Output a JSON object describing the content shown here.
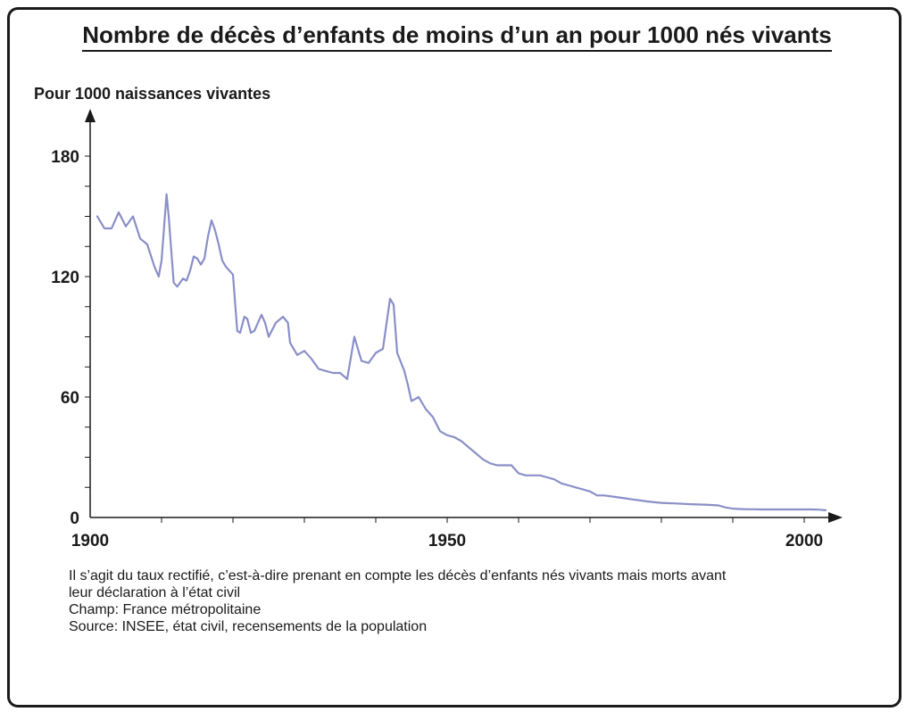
{
  "chart_data": {
    "type": "line",
    "title": "Nombre de décès d’enfants de moins d’un an pour 1000 nés vivants",
    "ylabel": "Pour 1000 naissances vivantes",
    "xlabel": "",
    "xlim": [
      1900,
      2005
    ],
    "ylim": [
      0,
      190
    ],
    "x_ticks": [
      1900,
      1950,
      2000
    ],
    "y_ticks": [
      0,
      60,
      120,
      180
    ],
    "grid": false,
    "series": [
      {
        "color": "#8a8fc8",
        "points": [
          [
            1901,
            150
          ],
          [
            1902,
            144
          ],
          [
            1903,
            144
          ],
          [
            1904,
            152
          ],
          [
            1905,
            145
          ],
          [
            1906,
            150
          ],
          [
            1907,
            139
          ],
          [
            1908,
            136
          ],
          [
            1909,
            125
          ],
          [
            1909.6,
            120
          ],
          [
            1910,
            128
          ],
          [
            1910.7,
            161
          ],
          [
            1911,
            150
          ],
          [
            1911.7,
            117
          ],
          [
            1912.2,
            115
          ],
          [
            1913,
            119
          ],
          [
            1913.5,
            118
          ],
          [
            1914,
            123
          ],
          [
            1914.5,
            130
          ],
          [
            1915,
            129
          ],
          [
            1915.5,
            126
          ],
          [
            1916,
            129
          ],
          [
            1916.5,
            140
          ],
          [
            1917,
            148
          ],
          [
            1917.5,
            143
          ],
          [
            1918,
            136
          ],
          [
            1918.5,
            128
          ],
          [
            1919,
            125
          ],
          [
            1920,
            121
          ],
          [
            1920.6,
            93
          ],
          [
            1921,
            92
          ],
          [
            1921.6,
            100
          ],
          [
            1922,
            99
          ],
          [
            1922.5,
            92
          ],
          [
            1923,
            93
          ],
          [
            1924,
            101
          ],
          [
            1924.5,
            97
          ],
          [
            1925,
            90
          ],
          [
            1926,
            97
          ],
          [
            1927,
            100
          ],
          [
            1927.7,
            97
          ],
          [
            1928,
            87
          ],
          [
            1929,
            81
          ],
          [
            1930,
            83
          ],
          [
            1931,
            79
          ],
          [
            1932,
            74
          ],
          [
            1933,
            73
          ],
          [
            1934,
            72
          ],
          [
            1935,
            72
          ],
          [
            1936,
            69
          ],
          [
            1937,
            90
          ],
          [
            1938,
            78
          ],
          [
            1939,
            77
          ],
          [
            1940,
            82
          ],
          [
            1941,
            84
          ],
          [
            1942,
            109
          ],
          [
            1942.5,
            106
          ],
          [
            1943,
            82
          ],
          [
            1944,
            73
          ],
          [
            1944.5,
            66
          ],
          [
            1945,
            58
          ],
          [
            1945.5,
            59
          ],
          [
            1946,
            60
          ],
          [
            1947,
            54
          ],
          [
            1948,
            50
          ],
          [
            1949,
            43
          ],
          [
            1950,
            41
          ],
          [
            1951,
            40
          ],
          [
            1952,
            38
          ],
          [
            1953,
            35
          ],
          [
            1954,
            32
          ],
          [
            1955,
            29
          ],
          [
            1956,
            27
          ],
          [
            1957,
            26
          ],
          [
            1958,
            26
          ],
          [
            1959,
            26
          ],
          [
            1960,
            22
          ],
          [
            1961,
            21
          ],
          [
            1962,
            21
          ],
          [
            1963,
            21
          ],
          [
            1964,
            20
          ],
          [
            1965,
            19
          ],
          [
            1966,
            17
          ],
          [
            1967,
            16
          ],
          [
            1968,
            15
          ],
          [
            1969,
            14
          ],
          [
            1970,
            13
          ],
          [
            1971,
            11
          ],
          [
            1972,
            11
          ],
          [
            1973,
            10.5
          ],
          [
            1974,
            10
          ],
          [
            1975,
            9.5
          ],
          [
            1976,
            9
          ],
          [
            1977,
            8.5
          ],
          [
            1978,
            8
          ],
          [
            1979,
            7.6
          ],
          [
            1980,
            7.3
          ],
          [
            1981,
            7.1
          ],
          [
            1982,
            7
          ],
          [
            1983,
            6.8
          ],
          [
            1984,
            6.6
          ],
          [
            1985,
            6.5
          ],
          [
            1986,
            6.4
          ],
          [
            1987,
            6.2
          ],
          [
            1988,
            6
          ],
          [
            1989,
            5
          ],
          [
            1990,
            4.4
          ],
          [
            1991,
            4.2
          ],
          [
            1992,
            4.1
          ],
          [
            1993,
            4.1
          ],
          [
            1994,
            4
          ],
          [
            1995,
            4
          ],
          [
            1996,
            4
          ],
          [
            1997,
            4
          ],
          [
            1998,
            4
          ],
          [
            1999,
            4
          ],
          [
            2000,
            4
          ],
          [
            2001,
            4
          ],
          [
            2002,
            3.9
          ],
          [
            2003,
            3.6
          ]
        ]
      }
    ]
  },
  "notes": {
    "line1": "Il s’agit du taux rectifié, c’est-à-dire prenant en compte les décès d’enfants nés vivants mais morts avant",
    "line2": "leur déclaration à l’état civil",
    "line3": "Champ: France métropolitaine",
    "line4": "Source: INSEE, état civil, recensements de la population"
  }
}
